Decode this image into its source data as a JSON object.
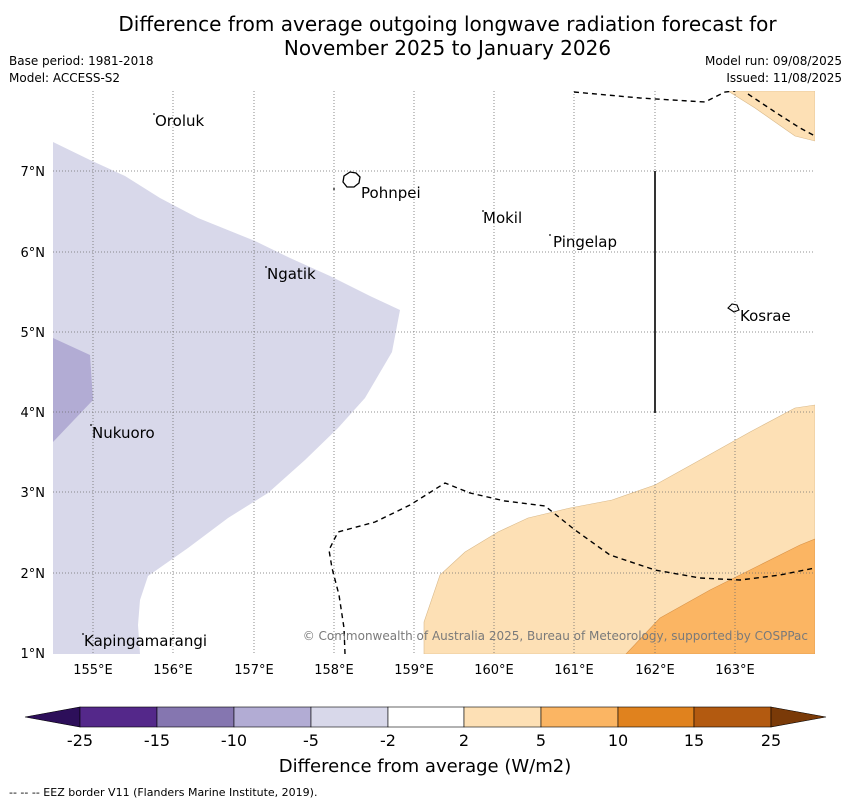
{
  "header": {
    "title_line1": "Difference from average outgoing longwave radiation forecast for",
    "title_line2": "November 2025 to January 2026",
    "base_period": "Base period: 1981-2018",
    "model": "Model: ACCESS-S2",
    "model_run": "Model run: 09/08/2025",
    "issued": "Issued: 11/08/2025"
  },
  "map": {
    "lon_labels": [
      "155°E",
      "156°E",
      "157°E",
      "158°E",
      "159°E",
      "160°E",
      "161°E",
      "162°E",
      "163°E"
    ],
    "lat_labels": [
      "7°N",
      "6°N",
      "5°N",
      "4°N",
      "3°N",
      "2°N",
      "1°N"
    ],
    "places": [
      {
        "name": "Oroluk"
      },
      {
        "name": "Pohnpei"
      },
      {
        "name": "Mokil"
      },
      {
        "name": "Pingelap"
      },
      {
        "name": "Ngatik"
      },
      {
        "name": "Kosrae"
      },
      {
        "name": "Nukuoro"
      },
      {
        "name": "Kapingamarangi"
      }
    ],
    "copyright": "© Commonwealth of Australia 2025, Bureau of Meteorology, supported by COSPPac"
  },
  "colorbar": {
    "labels": [
      "-25",
      "-15",
      "-10",
      "-5",
      "-2",
      "2",
      "5",
      "10",
      "15",
      "25"
    ],
    "colors": [
      "#2d0f5a",
      "#54288a",
      "#8576b0",
      "#b2acd4",
      "#d8d8ea",
      "#ffffff",
      "#fde0b5",
      "#fbb563",
      "#e0821e",
      "#b35a10",
      "#7a3a08"
    ],
    "title": "Difference from average (W/m2)"
  },
  "footnote": "--  --  -- EEZ border V11 (Flanders Marine Institute, 2019)."
}
